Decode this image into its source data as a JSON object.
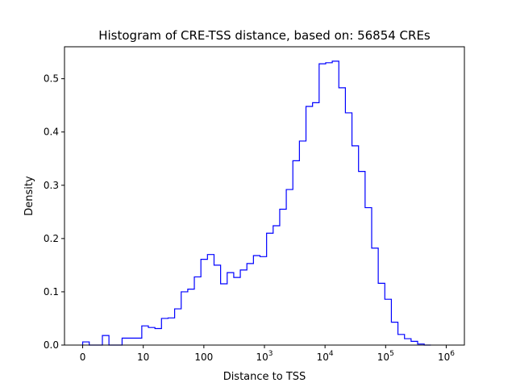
{
  "chart_data": {
    "type": "step-histogram",
    "title": "Histogram of CRE-TSS distance, based on: 56854 CREs",
    "xlabel": "Distance to TSS",
    "ylabel": "Density",
    "xscale": "symlog",
    "xlim": [
      -0.3,
      6.3
    ],
    "ylim": [
      0,
      0.56
    ],
    "grid": false,
    "line_color": "#0000ff",
    "x_ticks": [
      {
        "pos": 0,
        "label": "0"
      },
      {
        "pos": 1,
        "label": "10"
      },
      {
        "pos": 2,
        "label": "100"
      },
      {
        "pos": 3,
        "label": "10",
        "exp": "3"
      },
      {
        "pos": 4,
        "label": "10",
        "exp": "4"
      },
      {
        "pos": 5,
        "label": "10",
        "exp": "5"
      },
      {
        "pos": 6,
        "label": "10",
        "exp": "6"
      }
    ],
    "y_ticks": [
      {
        "val": 0.0,
        "label": "0.0"
      },
      {
        "val": 0.1,
        "label": "0.1"
      },
      {
        "val": 0.2,
        "label": "0.2"
      },
      {
        "val": 0.3,
        "label": "0.3"
      },
      {
        "val": 0.4,
        "label": "0.4"
      },
      {
        "val": 0.5,
        "label": "0.5"
      }
    ],
    "bin_width": 0.1084,
    "bin_start": 0.0,
    "densities": [
      0.006,
      0.0,
      0.0,
      0.018,
      0.0,
      0.0,
      0.013,
      0.013,
      0.013,
      0.036,
      0.033,
      0.031,
      0.05,
      0.051,
      0.068,
      0.1,
      0.105,
      0.128,
      0.161,
      0.17,
      0.15,
      0.115,
      0.136,
      0.127,
      0.141,
      0.153,
      0.168,
      0.166,
      0.21,
      0.224,
      0.255,
      0.292,
      0.346,
      0.383,
      0.448,
      0.455,
      0.528,
      0.53,
      0.533,
      0.483,
      0.436,
      0.374,
      0.326,
      0.258,
      0.182,
      0.116,
      0.086,
      0.043,
      0.02,
      0.012,
      0.007,
      0.002,
      0.0
    ]
  }
}
